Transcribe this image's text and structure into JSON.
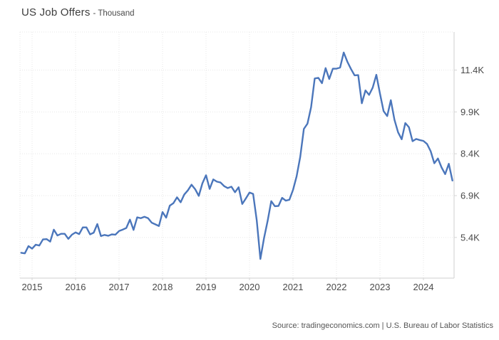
{
  "header": {
    "title": "US Job Offers",
    "subtitle": "- Thousand"
  },
  "source": {
    "label": "Source: tradingeconomics.com | U.S. Bureau of Labor Statistics"
  },
  "chart_data": {
    "type": "line",
    "title": "US Job Offers",
    "unit": "Thousand",
    "grid": true,
    "legend": false,
    "colors": {
      "line": "#4b76bb",
      "grid": "#e7e7e7",
      "border_solid": "#cfcfcf",
      "tick": "#d6d6d6",
      "axis_text": "#4a4a4a"
    },
    "x_axis": {
      "tick_labels": [
        "2015",
        "2016",
        "2017",
        "2018",
        "2019",
        "2020",
        "2021",
        "2022",
        "2023",
        "2024"
      ],
      "domain_years": [
        2014.721,
        2024.705
      ]
    },
    "y_axis": {
      "tick_labels": [
        "11.4K",
        "9.9K",
        "8.4K",
        "6.9K",
        "5.4K"
      ],
      "tick_values": [
        11400,
        9900,
        8400,
        6900,
        5400
      ],
      "domain": [
        3942,
        12764
      ]
    },
    "series": [
      {
        "name": "US Job Offers",
        "start_year": 2014,
        "start_month": 10,
        "frequency": "monthly",
        "values": [
          4850,
          4830,
          5090,
          5000,
          5140,
          5110,
          5330,
          5340,
          5250,
          5680,
          5470,
          5530,
          5530,
          5350,
          5500,
          5580,
          5520,
          5760,
          5760,
          5510,
          5570,
          5880,
          5450,
          5490,
          5460,
          5510,
          5500,
          5630,
          5680,
          5740,
          6040,
          5670,
          6120,
          6090,
          6140,
          6090,
          5930,
          5870,
          5810,
          6310,
          6110,
          6540,
          6630,
          6840,
          6660,
          6940,
          7090,
          7290,
          7130,
          6890,
          7340,
          7630,
          7140,
          7480,
          7400,
          7370,
          7240,
          7170,
          7220,
          7020,
          7200,
          6600,
          6800,
          7010,
          6960,
          6010,
          4630,
          5370,
          5990,
          6700,
          6520,
          6530,
          6820,
          6720,
          6750,
          7100,
          7590,
          8290,
          9290,
          9480,
          10070,
          11100,
          11120,
          10930,
          11470,
          11080,
          11450,
          11450,
          11490,
          12030,
          11700,
          11440,
          11210,
          11220,
          10210,
          10670,
          10510,
          10770,
          11230,
          10560,
          9930,
          9750,
          10320,
          9620,
          9170,
          8920,
          9500,
          9350,
          8850,
          8930,
          8890,
          8860,
          8750,
          8490,
          8060,
          8230,
          7910,
          7670,
          8040,
          7440
        ]
      }
    ]
  }
}
